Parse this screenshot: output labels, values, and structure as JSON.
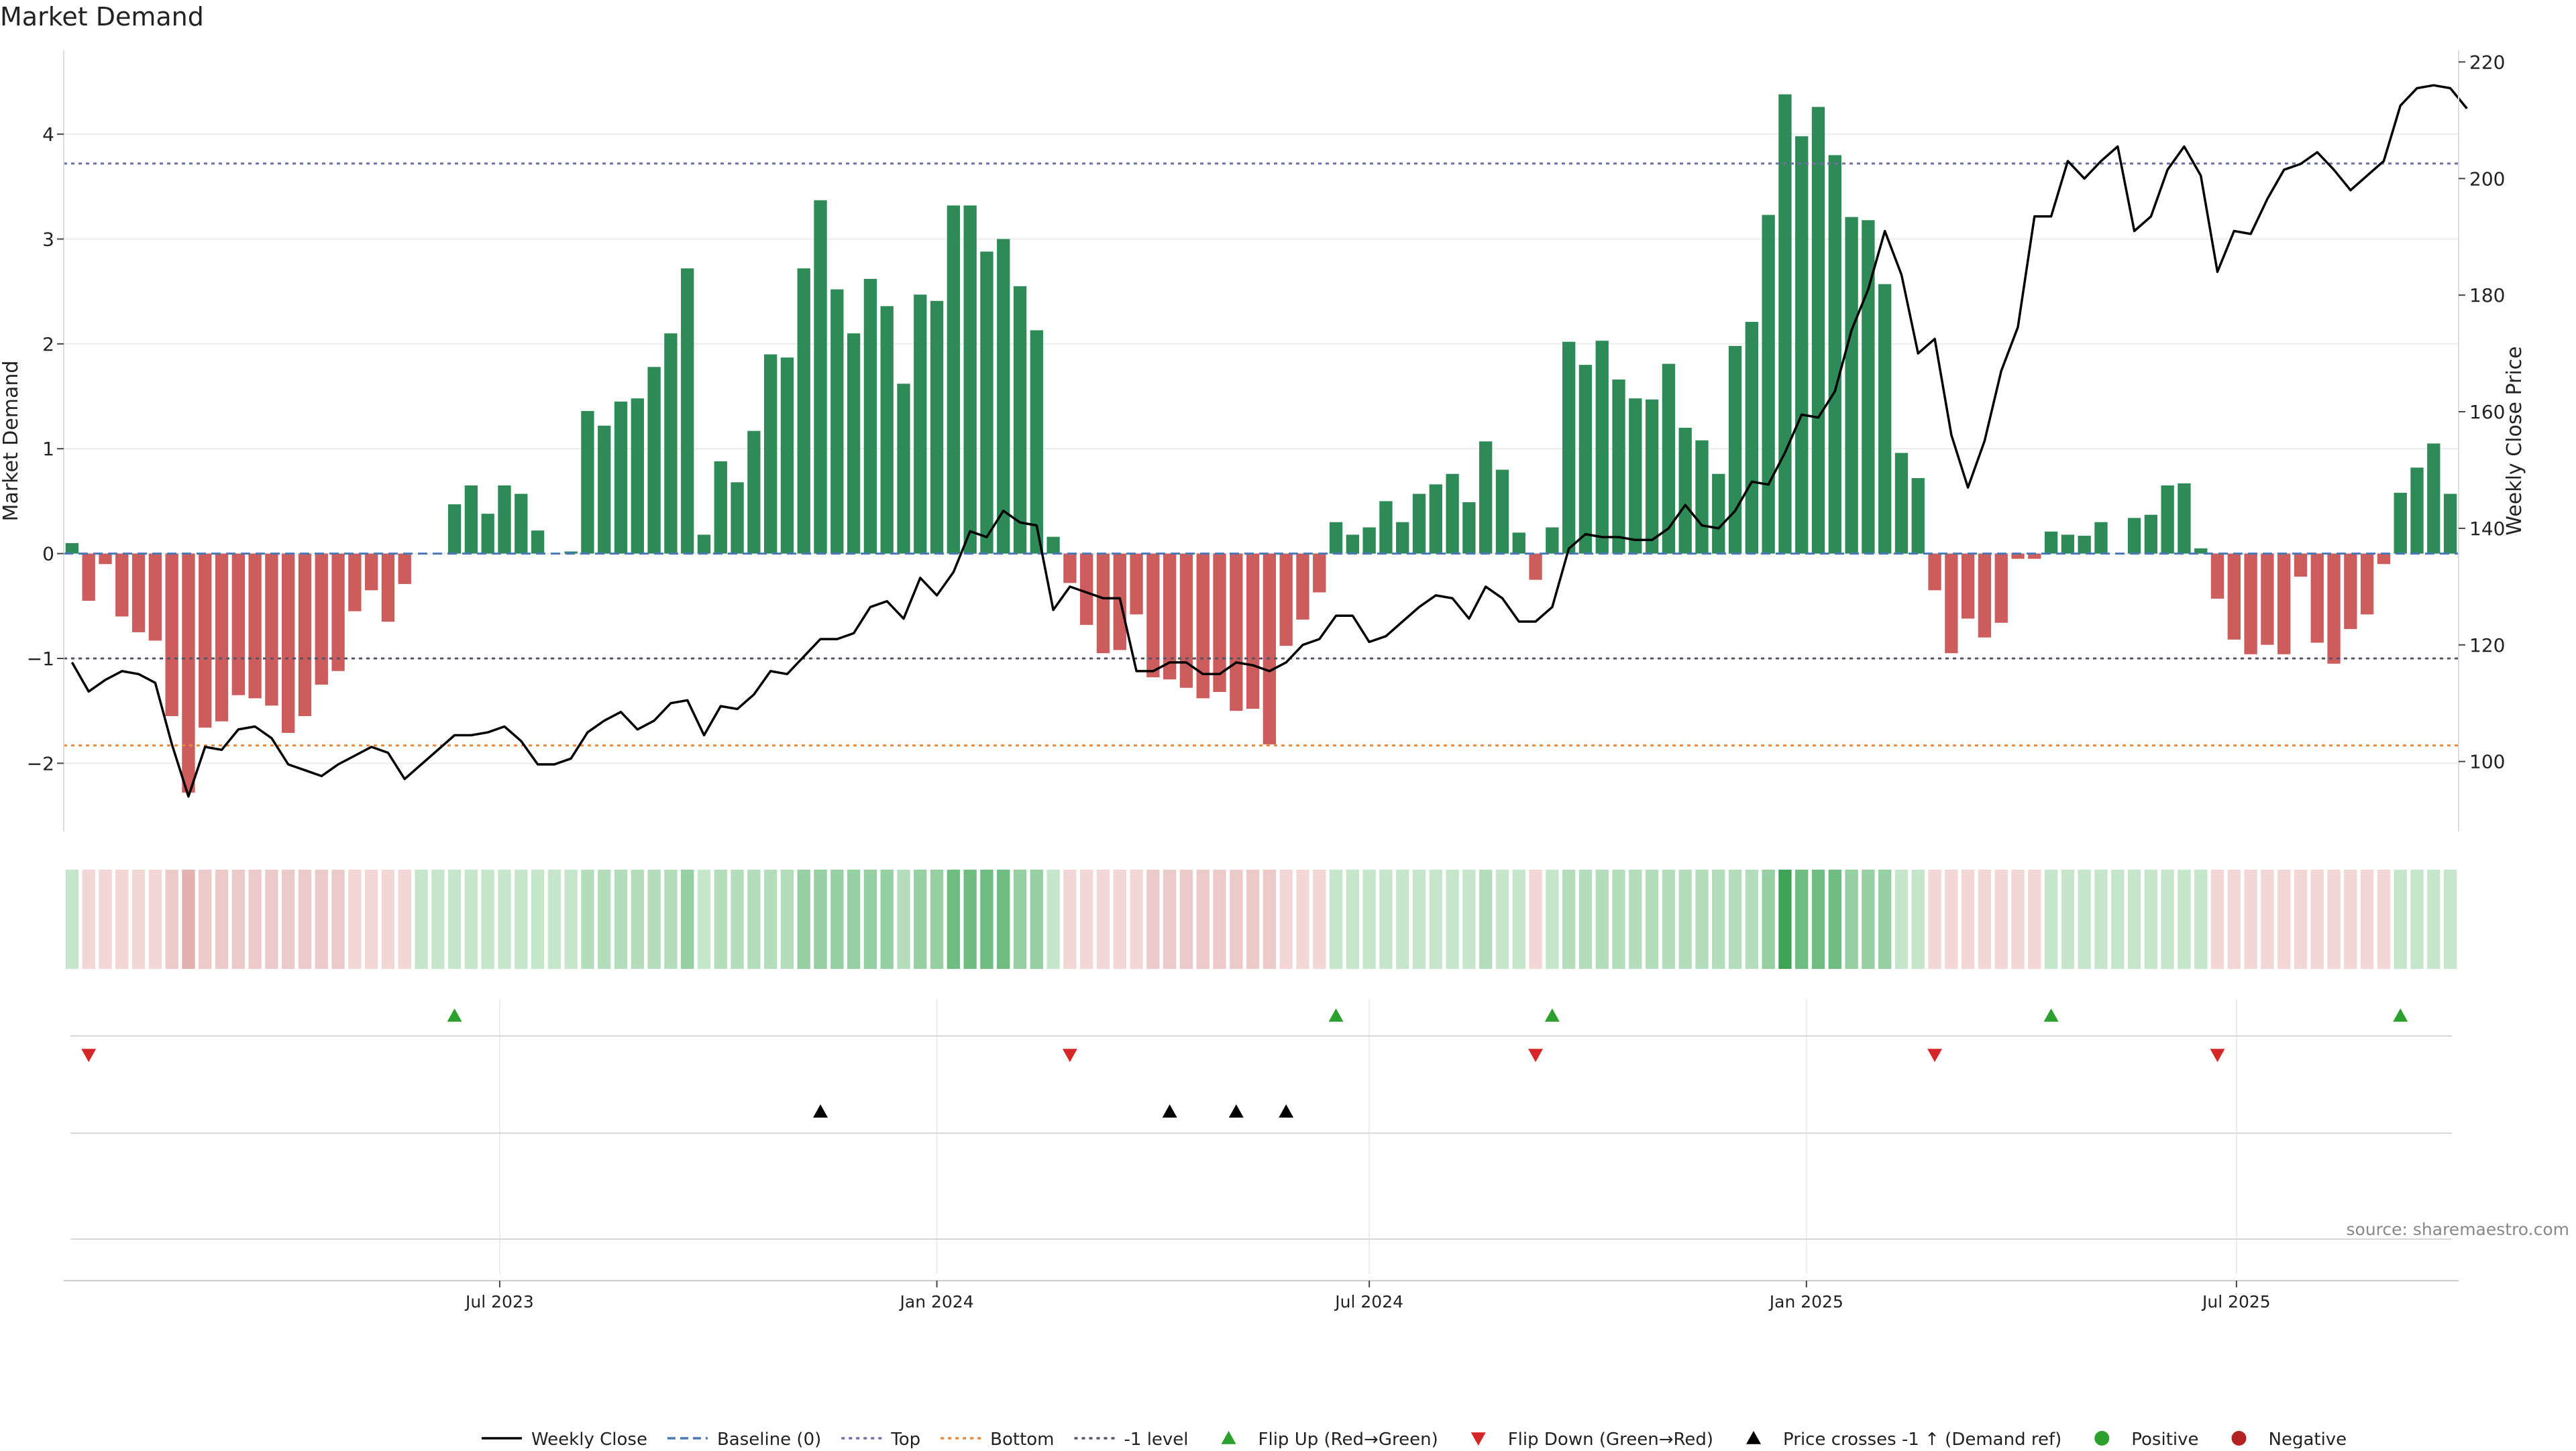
{
  "chart_data": {
    "type": "bar",
    "title": "Market Demand",
    "ylabel": "Market Demand",
    "y2label": "Weekly Close Price",
    "ylim": [
      -2.65,
      4.8
    ],
    "y2lim": [
      88,
      222
    ],
    "yticks": [
      -2,
      -1,
      0,
      1,
      2,
      3,
      4
    ],
    "y2ticks": [
      100,
      120,
      140,
      160,
      180,
      200,
      220
    ],
    "x_start": "2023-01-02",
    "x_interval": "weekly",
    "xticks": [
      "Jul 2023",
      "Jan 2024",
      "Jul 2024",
      "Jan 2025",
      "Jul 2025"
    ],
    "xtick_dates": [
      "2023-07-01",
      "2024-01-01",
      "2024-07-01",
      "2025-01-01",
      "2025-07-01"
    ],
    "reference_lines": [
      {
        "name": "Top",
        "value": 3.72,
        "color": "#7070a8",
        "style": "dotted"
      },
      {
        "name": "Bottom",
        "value": -1.83,
        "color": "#e8893a",
        "style": "dotted"
      },
      {
        "name": "-1 level",
        "value": -1.0,
        "color": "#555566",
        "style": "dotted"
      }
    ],
    "demand": [
      0.1,
      -0.45,
      -0.1,
      -0.6,
      -0.75,
      -0.83,
      -1.55,
      -2.28,
      -1.66,
      -1.6,
      -1.35,
      -1.38,
      -1.45,
      -1.71,
      -1.55,
      -1.25,
      -1.12,
      -0.55,
      -0.35,
      -0.65,
      -0.29,
      0.0,
      0.0,
      0.47,
      0.65,
      0.38,
      0.65,
      0.57,
      0.22,
      0.0,
      0.02,
      1.36,
      1.22,
      1.45,
      1.48,
      1.78,
      2.1,
      2.72,
      0.18,
      0.88,
      0.68,
      1.17,
      1.9,
      1.87,
      2.72,
      3.37,
      2.52,
      2.1,
      2.62,
      2.36,
      1.62,
      2.47,
      2.41,
      3.32,
      3.32,
      2.88,
      3.0,
      2.55,
      2.13,
      0.16,
      -0.28,
      -0.68,
      -0.95,
      -0.92,
      -0.58,
      -1.18,
      -1.2,
      -1.28,
      -1.38,
      -1.32,
      -1.5,
      -1.48,
      -1.82,
      -0.88,
      -0.63,
      -0.37,
      0.3,
      0.18,
      0.25,
      0.5,
      0.3,
      0.57,
      0.66,
      0.76,
      0.49,
      1.07,
      0.8,
      0.2,
      -0.25,
      0.25,
      2.02,
      1.8,
      2.03,
      1.66,
      1.48,
      1.47,
      1.81,
      1.2,
      1.08,
      0.76,
      1.98,
      2.21,
      3.23,
      4.38,
      3.98,
      4.26,
      3.8,
      3.21,
      3.18,
      2.57,
      0.96,
      0.72,
      -0.35,
      -0.95,
      -0.62,
      -0.8,
      -0.66,
      -0.05,
      -0.05,
      0.21,
      0.18,
      0.17,
      0.3,
      0.0,
      0.34,
      0.37,
      0.65,
      0.67,
      0.05,
      -0.43,
      -0.82,
      -0.96,
      -0.87,
      -0.96,
      -0.22,
      -0.85,
      -1.05,
      -0.72,
      -0.58,
      -0.1,
      0.58,
      0.82,
      1.05,
      0.57
    ],
    "price": [
      117,
      112,
      114,
      115.5,
      115,
      113.5,
      103,
      94,
      102.5,
      102,
      105.5,
      106,
      104,
      99.5,
      98.5,
      97.5,
      99.5,
      101,
      102.5,
      101.5,
      97,
      99.5,
      102,
      104.5,
      104.5,
      105,
      106,
      103.5,
      99.5,
      99.5,
      100.5,
      105,
      107,
      108.5,
      105.5,
      107,
      110,
      110.5,
      104.5,
      109.5,
      109,
      111.5,
      115.5,
      115,
      118,
      121,
      121,
      122,
      126.5,
      127.5,
      124.5,
      131.5,
      128.5,
      132.5,
      139.5,
      138.5,
      143,
      141,
      140.5,
      126,
      130,
      129,
      128,
      128,
      115.5,
      115.5,
      117,
      117,
      115,
      115,
      117,
      116.5,
      115.5,
      117,
      120,
      121,
      125,
      125,
      120.5,
      121.5,
      124,
      126.5,
      128.5,
      128,
      124.5,
      130,
      128,
      124,
      124,
      126.5,
      136.5,
      139,
      138.5,
      138.5,
      138,
      138,
      140,
      144,
      140.5,
      140,
      143,
      148,
      147.5,
      153,
      159.5,
      159,
      163.5,
      174,
      181,
      191,
      183.5,
      170,
      172.5,
      156,
      147,
      155,
      167,
      174.5,
      193.5,
      193.5,
      203,
      200,
      203,
      205.5,
      191,
      193.5,
      201.5,
      205.5,
      200.5,
      184,
      191,
      190.5,
      196.5,
      201.5,
      202.5,
      204.5,
      201.5,
      198,
      200.5,
      203,
      212.5,
      215.5,
      216,
      215.5,
      212
    ],
    "strip_levels": [
      1,
      1,
      1,
      1,
      1,
      1,
      2,
      3,
      2,
      2,
      2,
      2,
      2,
      2,
      2,
      2,
      2,
      1,
      1,
      1,
      1,
      1,
      1,
      1,
      1,
      1,
      1,
      1,
      1,
      1,
      1,
      2,
      2,
      2,
      2,
      2,
      2,
      3,
      1,
      2,
      2,
      2,
      2,
      2,
      3,
      3,
      3,
      3,
      3,
      3,
      2,
      3,
      3,
      4,
      4,
      4,
      4,
      3,
      3,
      1,
      1,
      1,
      1,
      1,
      1,
      2,
      2,
      2,
      2,
      2,
      2,
      2,
      2,
      1,
      1,
      1,
      1,
      1,
      1,
      1,
      1,
      1,
      1,
      1,
      1,
      2,
      1,
      1,
      1,
      1,
      2,
      2,
      2,
      2,
      2,
      2,
      2,
      2,
      2,
      2,
      2,
      2,
      3,
      5,
      4,
      4,
      4,
      3,
      3,
      3,
      1,
      1,
      1,
      1,
      1,
      1,
      1,
      1,
      1,
      1,
      1,
      1,
      1,
      1,
      1,
      1,
      1,
      1,
      1,
      1,
      1,
      1,
      1,
      1,
      1,
      1,
      1,
      1,
      1,
      1,
      1,
      1,
      1,
      1
    ],
    "flip_up_weeks": [
      23,
      76,
      89,
      119,
      140
    ],
    "flip_down_weeks": [
      1,
      60,
      88,
      112,
      129
    ],
    "price_cross_weeks": [
      45,
      66,
      70,
      73
    ],
    "colors": {
      "positive_bar": "#2e8b57",
      "negative_bar": "#cd5c5c",
      "line": "#000000",
      "flip_up": "#2ca02c",
      "flip_down": "#d62728",
      "cross": "#000000",
      "positive_dot": "#2ca02c",
      "negative_dot": "#b22222"
    },
    "legend_position": "bottom-center",
    "legend": [
      {
        "label": "Weekly Close",
        "kind": "line-solid"
      },
      {
        "label": "Baseline (0)",
        "kind": "line-dashed-blue"
      },
      {
        "label": "Top",
        "kind": "line-dotted-purple"
      },
      {
        "label": "Bottom",
        "kind": "line-dotted-orange"
      },
      {
        "label": "-1 level",
        "kind": "line-dotted-gray"
      },
      {
        "label": "Flip Up (Red→Green)",
        "kind": "tri-up-green"
      },
      {
        "label": "Flip Down (Green→Red)",
        "kind": "tri-down-red"
      },
      {
        "label": "Price crosses -1 ↑ (Demand ref)",
        "kind": "tri-up-black"
      },
      {
        "label": "Positive",
        "kind": "dot-green"
      },
      {
        "label": "Negative",
        "kind": "dot-red"
      }
    ],
    "source": "source: sharemaestro.com",
    "grid": true
  }
}
